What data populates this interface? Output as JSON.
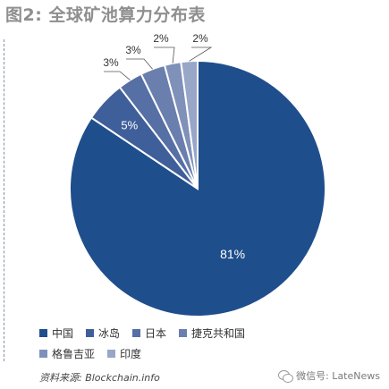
{
  "page": {
    "title": "图2: 全球矿池算力分布表",
    "source": "资料来源: Blockchain.info",
    "watermark": "微信号: LateNews",
    "watermark_icon": "wechat-icon"
  },
  "chart_data": {
    "type": "pie",
    "title": "图2: 全球矿池算力分布表",
    "labels": [
      "中国",
      "冰岛",
      "日本",
      "捷克共和国",
      "格鲁吉亚",
      "印度"
    ],
    "values": [
      81,
      5,
      3,
      3,
      2,
      2
    ],
    "data_labels": [
      "81%",
      "5%",
      "3%",
      "3%",
      "2%",
      "2%"
    ],
    "colors": [
      "#1f4e8c",
      "#3f5f9a",
      "#566fa4",
      "#6a7fae",
      "#7f90b9",
      "#98a6c8"
    ],
    "start": "top",
    "direction": "clockwise",
    "legend_position": "bottom",
    "grid": false
  }
}
